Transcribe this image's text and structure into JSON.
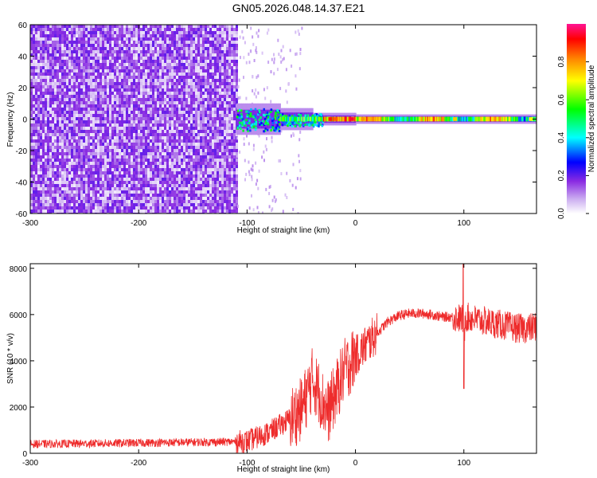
{
  "figure": {
    "title": "GN05.2026.048.14.37.E21"
  },
  "chart_data": [
    {
      "type": "heatmap",
      "name": "spectrogram",
      "xlabel": "Height of straight line (km)",
      "ylabel": "Frequency (Hz)",
      "xlim": [
        -300,
        167
      ],
      "ylim": [
        -60,
        60
      ],
      "x_ticks": [
        -300,
        -200,
        -100,
        0,
        100
      ],
      "y_ticks": [
        60,
        40,
        20,
        0,
        -20,
        -40,
        -60
      ],
      "colorbar": {
        "label": "Normalized spectral amplitude",
        "range": [
          0,
          1
        ],
        "ticks": [
          "0.0",
          "0.2",
          "0.4",
          "0.6",
          "0.8"
        ],
        "colors": [
          "#ffffff",
          "#8a2be2",
          "#0000ff",
          "#00ffff",
          "#00ff00",
          "#ffff00",
          "#ff8000",
          "#ff0000",
          "#ff1493"
        ]
      },
      "description_regions": {
        "noise_region_x": [
          -300,
          -110
        ],
        "noise_amplitude": 0.15,
        "transition_region_x": [
          -110,
          -30
        ],
        "narrowband_center_hz": 0,
        "narrowband_peak_amplitude": 0.95
      }
    },
    {
      "type": "line",
      "name": "snr",
      "xlabel": "Height of straight line (km)",
      "ylabel": "SNR (10 * v/v)",
      "xlim": [
        -300,
        167
      ],
      "ylim": [
        0,
        8200
      ],
      "x_ticks": [
        -300,
        -200,
        -100,
        0,
        100
      ],
      "y_ticks": [
        0,
        2000,
        4000,
        6000,
        8000
      ],
      "series_color": "#ee2c2c",
      "series": [
        {
          "x": [
            -300,
            -250,
            -200,
            -150,
            -110,
            -100,
            -90,
            -80,
            -70,
            -60,
            -50,
            -45,
            -40,
            -35,
            -30,
            -25,
            -20,
            -15,
            -10,
            -5,
            0,
            10,
            20,
            30,
            40,
            50,
            60,
            70,
            80,
            90,
            99,
            100,
            101,
            110,
            120,
            130,
            140,
            150,
            160,
            167
          ],
          "values": [
            400,
            420,
            450,
            480,
            500,
            520,
            700,
            900,
            1200,
            1500,
            1900,
            2500,
            3200,
            2800,
            2200,
            1800,
            2400,
            3000,
            3600,
            3900,
            4200,
            4700,
            5200,
            5700,
            5950,
            6050,
            6050,
            6000,
            5900,
            5900,
            5800,
            4000,
            5900,
            5800,
            5700,
            5600,
            5500,
            5400,
            5400,
            5500
          ]
        }
      ]
    }
  ]
}
